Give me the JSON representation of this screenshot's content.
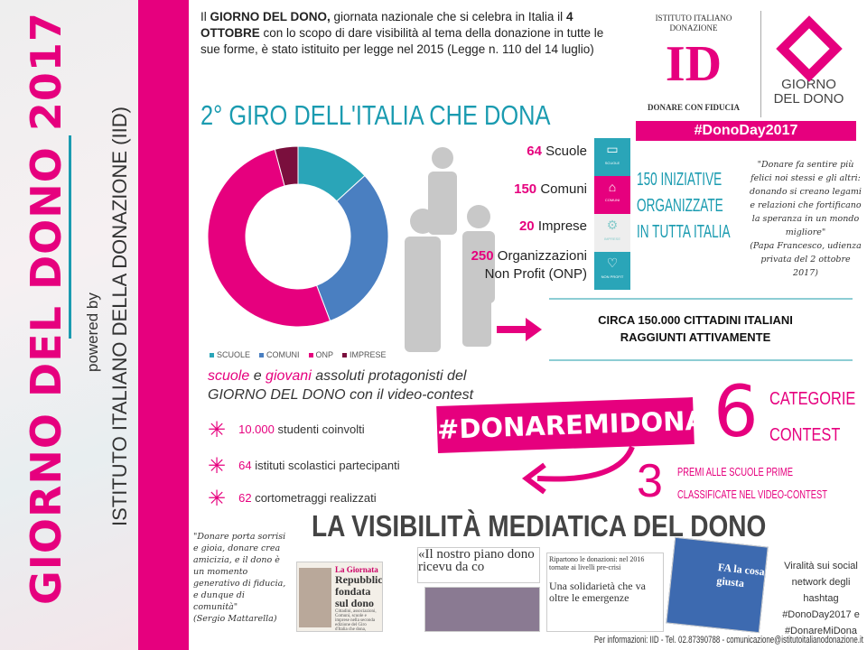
{
  "sidebar": {
    "title": "GIORNO DEL DONO 2017",
    "powered_by": "powered by",
    "institute": "ISTITUTO ITALIANO DELLA DONAZIONE (IID)"
  },
  "intro": {
    "p1": "Il ",
    "b1": "GIORNO DEL DONO,",
    "p2": " giornata nazionale che si celebra in Italia il ",
    "b2": "4 OTTOBRE",
    "p3": " con lo scopo di dare visibilità al tema della donazione in tutte le sue forme, è stato istituito per legge nel 2015 (Legge n. 110 del 14 luglio)"
  },
  "heading": "2° GIRO DELL'ITALIA CHE DONA",
  "logo": {
    "arc": "ISTITUTO ITALIANO DONAZIONE",
    "mark": "ID",
    "tagline": "DONARE CON FIDUCIA",
    "giorno1": "GIORNO",
    "giorno2": "DEL DONO",
    "hashtag": "#DonoDay2017"
  },
  "stats": [
    {
      "num": "64",
      "label": "Scuole",
      "tile": "SCUOLE",
      "color": "#2aa5b8"
    },
    {
      "num": "150",
      "label": "Comuni",
      "tile": "COMUNI",
      "color": "#e6007e"
    },
    {
      "num": "20",
      "label": "Imprese",
      "tile": "IMPRESE",
      "color": "#eeeeee"
    },
    {
      "num": "250",
      "label": "Organizzazioni",
      "label2": "Non Profit (ONP)",
      "tile": "NON PROFIT",
      "color": "#2aa5b8"
    }
  ],
  "initiatives": [
    "150 INIZIATIVE",
    "ORGANIZZATE",
    "IN TUTTA ITALIA"
  ],
  "quote_pope": {
    "text": "\"Donare fa sentire più felici noi stessi e gli altri: donando si creano legami e relazioni che fortificano la speranza in un mondo migliore\"",
    "source": "(Papa Francesco, udienza privata del 2 ottobre 2017)"
  },
  "reach": [
    "CIRCA 150.000 CITTADINI ITALIANI",
    "RAGGIUNTI ATTIVAMENTE"
  ],
  "chart_data": {
    "type": "pie",
    "donut": true,
    "categories": [
      "SCUOLE",
      "COMUNI",
      "ONP",
      "IMPRESE"
    ],
    "values": [
      64,
      150,
      250,
      20
    ],
    "colors": [
      "#2aa5b8",
      "#4a7fc1",
      "#e6007e",
      "#7a0f3d"
    ],
    "legend": "bottom"
  },
  "schools": {
    "w1": "scuole",
    "t1": " e ",
    "w2": "giovani",
    "t2": " assoluti protagonisti del",
    "line2": "GIORNO DEL DONO con il video-contest"
  },
  "bullets": [
    {
      "num": "10.000",
      "text": " studenti coinvolti"
    },
    {
      "num": "64",
      "text": " istituti scolastici partecipanti"
    },
    {
      "num": "62",
      "text": " cortometraggi realizzati"
    }
  ],
  "contest": {
    "hashtag": "#DONAREMIDONA",
    "six": "6",
    "categories": [
      "CATEGORIE",
      "CONTEST"
    ],
    "three": "3",
    "premi": [
      "PREMI ALLE SCUOLE PRIME",
      "CLASSIFICATE NEL VIDEO-CONTEST"
    ]
  },
  "media": {
    "title": "LA VISIBILITÀ MEDIATICA DEL DONO",
    "quote": "\"Donare porta sorrisi e gioia, donare crea amicizia, e il dono è un momento generativo di fiducia, e dunque di comunità\"",
    "quote_source": "(Sergio Mattarella)",
    "viral": "Viralità sui social network degli hashtag #DonoDay2017 e #DonareMiDona",
    "clips": {
      "c1_kicker": "La Giornata",
      "c1_head": "Repubblica fondata sul dono",
      "c1_body": "Cittadini, associazioni, Comuni, scuole e imprese nella seconda edizione del Giro d'Italia che dona, mercoledì.",
      "c2": "«Il nostro piano dono ricevu da co",
      "c3_top": "Ripartono le donazioni: nel 2016 tornate ai livelli pre-crisi",
      "c3_head": "Una solidarietà che va oltre le emergenze",
      "c4": "FA la cosa giusta"
    }
  },
  "footer": "Per informazioni: IID - Tel. 02.87390788 - comunicazione@istitutoitalianodonazione.it"
}
